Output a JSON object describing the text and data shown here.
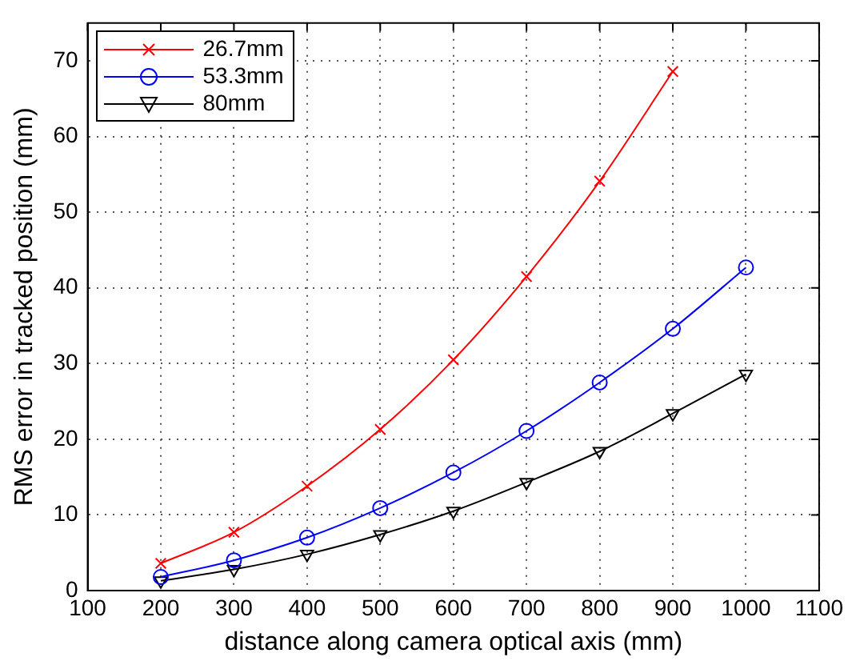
{
  "chart_data": {
    "type": "line",
    "xlabel": "distance along camera optical axis (mm)",
    "ylabel": "RMS error in tracked position (mm)",
    "x": [
      200,
      300,
      400,
      500,
      600,
      700,
      800,
      900,
      1000
    ],
    "series": [
      {
        "name": "26.7mm",
        "color": "#ff0000",
        "marker": "cross",
        "values": [
          3.6,
          7.7,
          13.8,
          21.3,
          30.5,
          41.5,
          54.1,
          68.6,
          null
        ]
      },
      {
        "name": "53.3mm",
        "color": "#0000ff",
        "marker": "circle",
        "values": [
          1.8,
          4.0,
          7.0,
          10.9,
          15.6,
          21.1,
          27.5,
          34.6,
          42.7
        ]
      },
      {
        "name": "80mm",
        "color": "#000000",
        "marker": "triangle",
        "values": [
          1.3,
          2.8,
          4.8,
          7.4,
          10.5,
          14.3,
          18.4,
          23.4,
          28.6
        ]
      }
    ],
    "xlim": [
      100,
      1100
    ],
    "xticks": [
      100,
      200,
      300,
      400,
      500,
      600,
      700,
      800,
      900,
      1000,
      1100
    ],
    "ylim": [
      0,
      75
    ],
    "yticks": [
      0,
      10,
      20,
      30,
      40,
      50,
      60,
      70
    ],
    "grid": true,
    "legend": "top left",
    "line_style": "solid"
  }
}
